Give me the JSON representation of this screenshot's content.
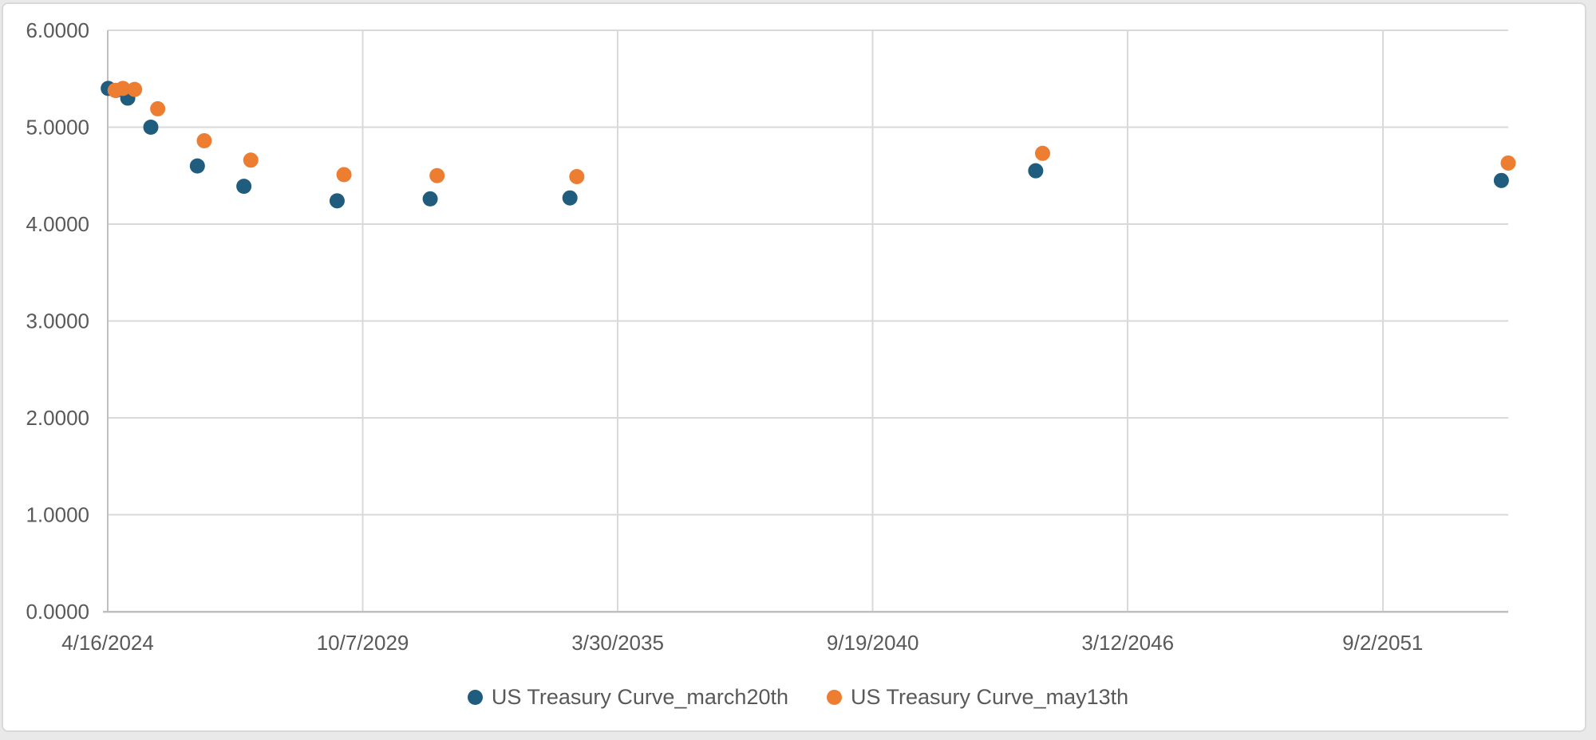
{
  "chart": {
    "background_color": "#ffffff",
    "frame_border_color": "#d9d9d9",
    "outer_background_color": "#e9e9e9"
  },
  "chart_data": {
    "type": "scatter",
    "title": "",
    "xlabel": "",
    "ylabel": "",
    "x_axis": {
      "kind": "date",
      "unit_days_since_first_tick": true,
      "min_days": 0,
      "max_days": 10984,
      "major_unit_days": 2000,
      "ticks": [
        {
          "label": "4/16/2024",
          "days": 0
        },
        {
          "label": "10/7/2029",
          "days": 2000
        },
        {
          "label": "3/30/2035",
          "days": 4000
        },
        {
          "label": "9/19/2040",
          "days": 6000
        },
        {
          "label": "3/12/2046",
          "days": 8000
        },
        {
          "label": "9/2/2051",
          "days": 10000
        }
      ],
      "gridlines": true
    },
    "y_axis": {
      "min": 0,
      "max": 6,
      "major_unit": 1,
      "tick_labels": [
        "0.0000",
        "1.0000",
        "2.0000",
        "3.0000",
        "4.0000",
        "5.0000",
        "6.0000"
      ],
      "gridlines": true
    },
    "styles": {
      "gridline_color": "#d9d9d9",
      "axis_line_color": "#bfbfbf",
      "tick_label_color": "#595959",
      "marker_radius": 9.5
    },
    "legend_position": "bottom",
    "series": [
      {
        "name": "US Treasury Curve_march20th",
        "color": "#1f5c7d",
        "points": [
          {
            "days": 4,
            "value": 5.4
          },
          {
            "days": 65,
            "value": 5.38
          },
          {
            "days": 157,
            "value": 5.3
          },
          {
            "days": 338,
            "value": 5.0
          },
          {
            "days": 703,
            "value": 4.6
          },
          {
            "days": 1068,
            "value": 4.39
          },
          {
            "days": 1799,
            "value": 4.24
          },
          {
            "days": 2529,
            "value": 4.26
          },
          {
            "days": 3625,
            "value": 4.27
          },
          {
            "days": 7278,
            "value": 4.55
          },
          {
            "days": 10930,
            "value": 4.45
          }
        ]
      },
      {
        "name": "US Treasury Curve_may13th",
        "color": "#ed7d31",
        "points": [
          {
            "days": 58,
            "value": 5.38
          },
          {
            "days": 119,
            "value": 5.4
          },
          {
            "days": 211,
            "value": 5.39
          },
          {
            "days": 392,
            "value": 5.19
          },
          {
            "days": 757,
            "value": 4.86
          },
          {
            "days": 1122,
            "value": 4.66
          },
          {
            "days": 1853,
            "value": 4.51
          },
          {
            "days": 2583,
            "value": 4.5
          },
          {
            "days": 3679,
            "value": 4.49
          },
          {
            "days": 7332,
            "value": 4.73
          },
          {
            "days": 10984,
            "value": 4.63
          }
        ]
      }
    ]
  }
}
